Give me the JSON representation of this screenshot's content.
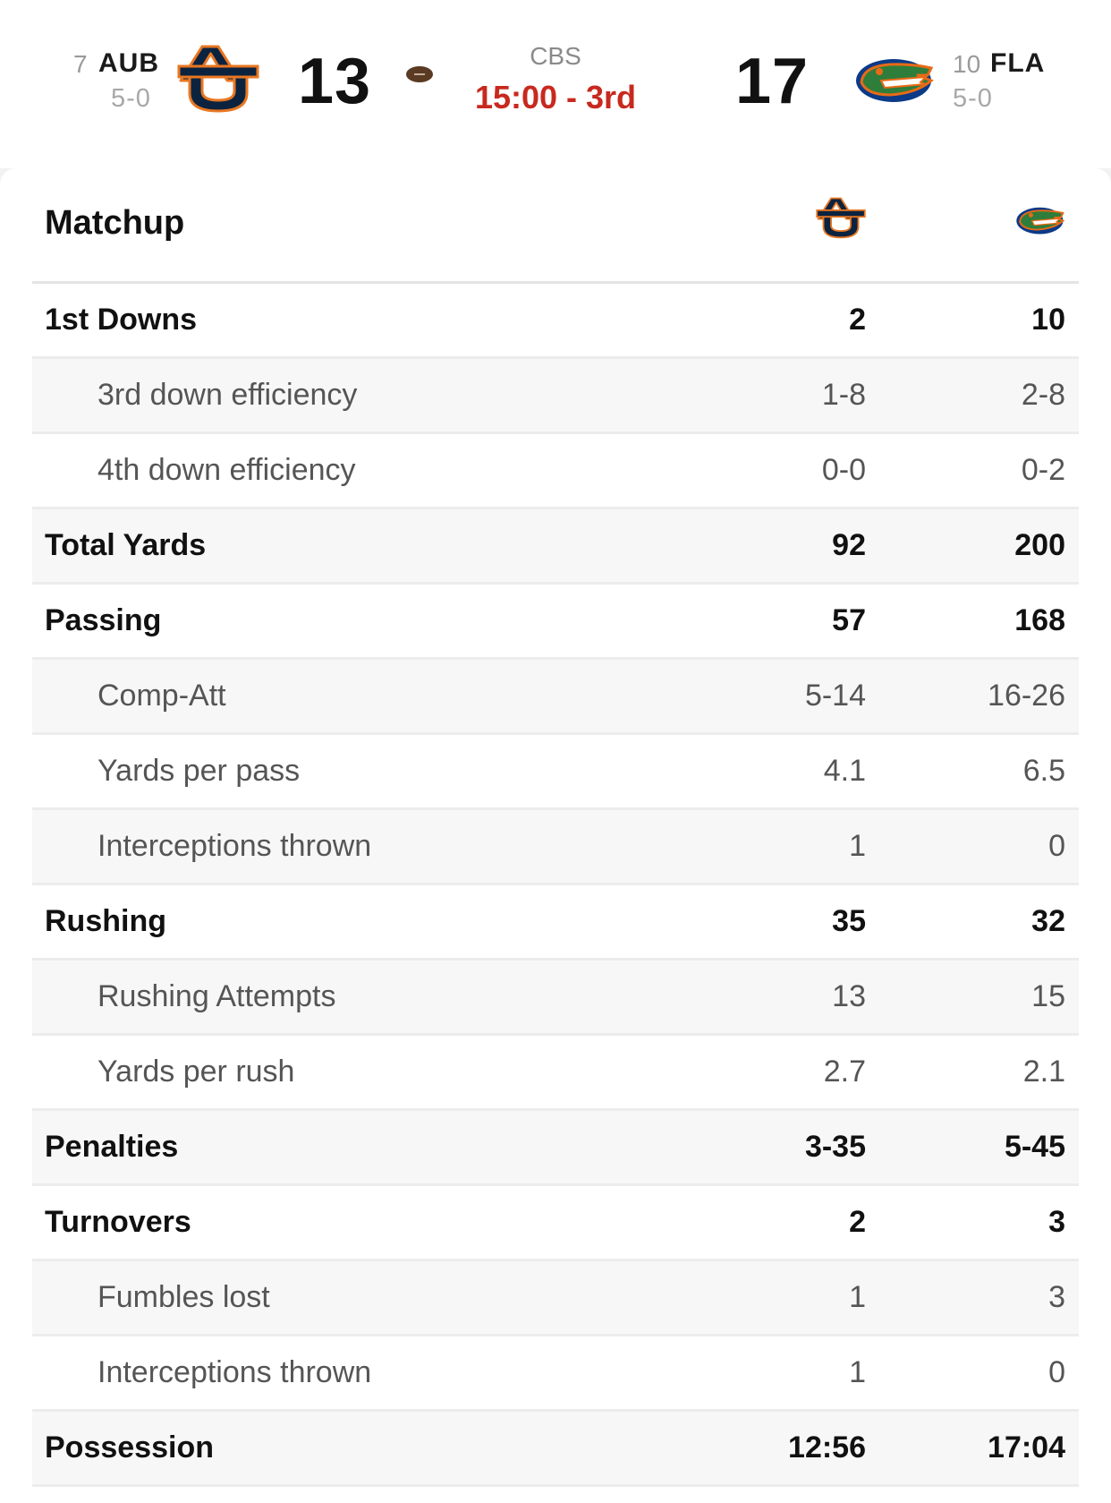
{
  "game": {
    "away": {
      "rank": "7",
      "abbr": "AUB",
      "record": "5-0",
      "score": "13",
      "logo_icon": "auburn-au-logo",
      "colors": {
        "navy": "#0c2340",
        "orange": "#e87722"
      }
    },
    "home": {
      "rank": "10",
      "abbr": "FLA",
      "record": "5-0",
      "score": "17",
      "logo_icon": "florida-gator-logo",
      "colors": {
        "green": "#2f7d3a",
        "orange": "#e86a17",
        "blue": "#0b3a87"
      }
    },
    "network": "CBS",
    "clock": "15:00 - 3rd",
    "clock_color": "#c8291e",
    "possession_icon": "football-icon"
  },
  "matchup": {
    "title": "Matchup",
    "rows": [
      {
        "label": "1st Downs",
        "away": "2",
        "home": "10",
        "kind": "main"
      },
      {
        "label": "3rd down efficiency",
        "away": "1-8",
        "home": "2-8",
        "kind": "sub"
      },
      {
        "label": "4th down efficiency",
        "away": "0-0",
        "home": "0-2",
        "kind": "sub"
      },
      {
        "label": "Total Yards",
        "away": "92",
        "home": "200",
        "kind": "main"
      },
      {
        "label": "Passing",
        "away": "57",
        "home": "168",
        "kind": "main"
      },
      {
        "label": "Comp-Att",
        "away": "5-14",
        "home": "16-26",
        "kind": "sub"
      },
      {
        "label": "Yards per pass",
        "away": "4.1",
        "home": "6.5",
        "kind": "sub"
      },
      {
        "label": "Interceptions thrown",
        "away": "1",
        "home": "0",
        "kind": "sub"
      },
      {
        "label": "Rushing",
        "away": "35",
        "home": "32",
        "kind": "main"
      },
      {
        "label": "Rushing Attempts",
        "away": "13",
        "home": "15",
        "kind": "sub"
      },
      {
        "label": "Yards per rush",
        "away": "2.7",
        "home": "2.1",
        "kind": "sub"
      },
      {
        "label": "Penalties",
        "away": "3-35",
        "home": "5-45",
        "kind": "main"
      },
      {
        "label": "Turnovers",
        "away": "2",
        "home": "3",
        "kind": "main"
      },
      {
        "label": "Fumbles lost",
        "away": "1",
        "home": "3",
        "kind": "sub"
      },
      {
        "label": "Interceptions thrown",
        "away": "1",
        "home": "0",
        "kind": "sub"
      },
      {
        "label": "Possession",
        "away": "12:56",
        "home": "17:04",
        "kind": "main"
      }
    ]
  }
}
